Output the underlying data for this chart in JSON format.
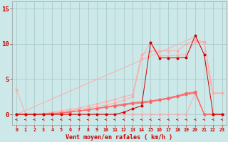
{
  "x": [
    0,
    1,
    2,
    3,
    4,
    5,
    6,
    7,
    8,
    9,
    10,
    11,
    12,
    13,
    14,
    15,
    16,
    17,
    18,
    19,
    20,
    21,
    22,
    23
  ],
  "line_diag": [
    0,
    0.55,
    1.1,
    1.65,
    2.2,
    2.75,
    3.3,
    3.85,
    4.4,
    4.95,
    5.5,
    6.05,
    6.6,
    7.15,
    7.7,
    8.25,
    8.8,
    9.35,
    9.9,
    10.45,
    11.0,
    8.5,
    3.0,
    3.0
  ],
  "line_bump1": [
    0,
    0,
    0,
    0.1,
    0.2,
    0.3,
    0.5,
    0.7,
    0.9,
    1.1,
    1.3,
    1.6,
    2.0,
    2.5,
    8.0,
    10.3,
    8.3,
    8.3,
    8.4,
    8.5,
    10.3,
    10.2,
    3.0,
    3.0
  ],
  "line_bump2": [
    0,
    0,
    0,
    0.1,
    0.3,
    0.5,
    0.7,
    0.9,
    1.2,
    1.5,
    1.8,
    2.1,
    2.5,
    2.8,
    8.5,
    9.0,
    9.0,
    9.0,
    9.0,
    10.0,
    10.5,
    10.3,
    3.0,
    3.0
  ],
  "line_med1": [
    0,
    0,
    0,
    0.05,
    0.1,
    0.2,
    0.35,
    0.5,
    0.65,
    0.8,
    1.0,
    1.15,
    1.3,
    1.5,
    1.6,
    1.75,
    2.0,
    2.2,
    2.5,
    2.8,
    3.0,
    0.0,
    0.0,
    0.0
  ],
  "line_med2": [
    0,
    0,
    0,
    0.05,
    0.1,
    0.2,
    0.35,
    0.5,
    0.65,
    0.85,
    1.05,
    1.25,
    1.45,
    1.65,
    1.75,
    1.9,
    2.1,
    2.3,
    2.6,
    2.9,
    3.1,
    0.0,
    0.0,
    0.0
  ],
  "line_med3": [
    0,
    0,
    0,
    0.05,
    0.1,
    0.2,
    0.35,
    0.5,
    0.65,
    0.85,
    1.05,
    1.25,
    1.45,
    1.65,
    1.75,
    1.9,
    2.1,
    2.35,
    2.65,
    3.0,
    3.2,
    0.0,
    0.0,
    0.0
  ],
  "line_dark": [
    0,
    0,
    0,
    0,
    0,
    0,
    0,
    0,
    0,
    0,
    0,
    0,
    0.3,
    0.8,
    1.2,
    10.2,
    8.0,
    8.0,
    8.0,
    8.1,
    11.2,
    8.5,
    0.0,
    0.0
  ],
  "line_start": [
    3.5,
    0.0,
    0.0,
    0.0,
    0.0,
    0.0,
    0.0,
    0.0,
    0.0,
    0.0,
    0.0,
    0.0,
    0.0,
    0.0,
    0.0,
    0.0,
    0.0,
    0.0,
    0.0,
    0.0,
    3.0,
    0.0,
    0.0,
    0.0
  ],
  "bg_color": "#cce8e8",
  "grid_color": "#aacccc",
  "color_light": "#ffaaaa",
  "color_med": "#ff6666",
  "color_dark": "#cc0000",
  "color_arrow": "#cc0000",
  "yticks": [
    0,
    5,
    10,
    15
  ],
  "xlabel": "Vent moyen/en rafales ( km/h )",
  "xlim": [
    -0.5,
    23.5
  ],
  "ylim": [
    -1.5,
    16.0
  ]
}
